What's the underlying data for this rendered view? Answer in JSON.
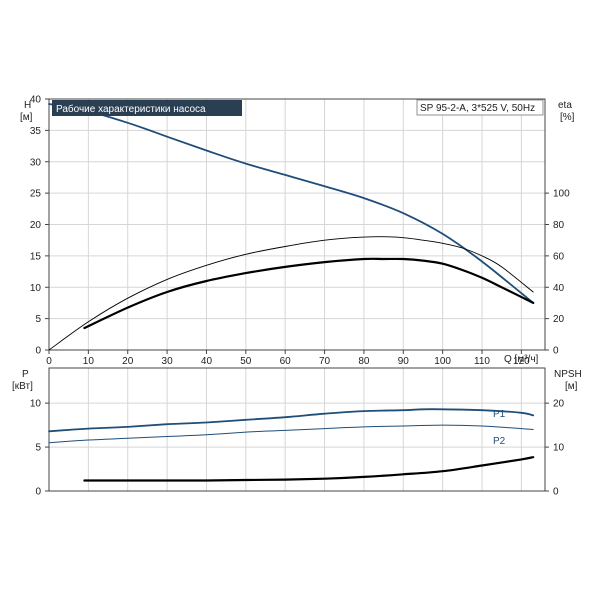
{
  "chart_data": [
    {
      "type": "line",
      "title": "Рабочие характеристики насоса",
      "subtitle": "SP 95-2-A, 3*525 V, 50Hz",
      "colors": {
        "title_bg": "#2a3f52",
        "title_fg": "#ffffff",
        "blue": "#1f4e79",
        "black": "#000000"
      },
      "x_axis": {
        "label": "Q [м³/ч]",
        "range": [
          0,
          126
        ],
        "ticks": [
          0,
          10,
          20,
          30,
          40,
          50,
          60,
          70,
          80,
          90,
          100,
          110,
          120
        ]
      },
      "y_left": {
        "label_top": "H",
        "label_unit": "[м]",
        "range": [
          0,
          40
        ],
        "ticks": [
          0,
          5,
          10,
          15,
          20,
          25,
          30,
          35,
          40
        ]
      },
      "y_right": {
        "label_top": "eta",
        "label_unit": "[%]",
        "range": [
          0,
          160
        ],
        "ticks": [
          0,
          20,
          40,
          60,
          80,
          100
        ]
      },
      "series": [
        {
          "axis": "left",
          "color": "#1f4e79",
          "width": 1.8,
          "x": [
            0,
            8,
            20,
            30,
            40,
            50,
            60,
            70,
            80,
            90,
            100,
            110,
            123
          ],
          "y": [
            39.2,
            38.4,
            36.2,
            34.0,
            31.8,
            29.7,
            27.9,
            26.1,
            24.2,
            21.8,
            18.5,
            14.1,
            7.5
          ]
        },
        {
          "axis": "right",
          "color": "#000000",
          "width": 0.9,
          "x": [
            0,
            10,
            20,
            30,
            40,
            50,
            60,
            70,
            80,
            88,
            95,
            100,
            105,
            110,
            115,
            123
          ],
          "y": [
            0,
            18,
            33,
            45,
            54,
            61,
            66,
            70,
            72,
            72,
            70,
            68,
            65,
            60,
            53,
            37
          ]
        },
        {
          "axis": "right",
          "color": "#000000",
          "width": 2.2,
          "x": [
            9,
            20,
            30,
            40,
            50,
            60,
            70,
            80,
            85,
            90,
            95,
            100,
            105,
            110,
            115,
            123
          ],
          "y": [
            14,
            27,
            37,
            44,
            49,
            53,
            56,
            58,
            58,
            58,
            57,
            55,
            51,
            46,
            40,
            30
          ]
        }
      ]
    },
    {
      "type": "line",
      "x_axis": {
        "range": [
          0,
          126
        ]
      },
      "y_left": {
        "label_top": "P",
        "label_unit": "[кВт]",
        "range": [
          0,
          14
        ],
        "ticks": [
          0,
          5,
          10
        ]
      },
      "y_right": {
        "label_top": "NPSH",
        "label_unit": "[м]",
        "range": [
          0,
          28
        ],
        "ticks": [
          0,
          10,
          20
        ]
      },
      "series": [
        {
          "name": "P1",
          "axis": "left",
          "color": "#1f4e79",
          "width": 1.8,
          "x": [
            0,
            10,
            20,
            30,
            40,
            50,
            60,
            70,
            80,
            90,
            95,
            100,
            110,
            120,
            123
          ],
          "y": [
            6.8,
            7.1,
            7.3,
            7.6,
            7.8,
            8.1,
            8.4,
            8.8,
            9.1,
            9.2,
            9.3,
            9.3,
            9.2,
            8.9,
            8.6
          ]
        },
        {
          "name": "P2",
          "axis": "left",
          "color": "#1f4e79",
          "width": 1.0,
          "x": [
            0,
            10,
            20,
            30,
            40,
            50,
            60,
            70,
            80,
            90,
            100,
            110,
            120,
            123
          ],
          "y": [
            5.5,
            5.8,
            6.0,
            6.2,
            6.4,
            6.7,
            6.9,
            7.1,
            7.3,
            7.4,
            7.5,
            7.4,
            7.1,
            7.0
          ]
        },
        {
          "axis": "right",
          "color": "#000000",
          "width": 2.2,
          "x": [
            9,
            20,
            30,
            40,
            50,
            60,
            70,
            80,
            90,
            100,
            110,
            120,
            123
          ],
          "y": [
            2.4,
            2.4,
            2.4,
            2.4,
            2.5,
            2.6,
            2.8,
            3.2,
            3.8,
            4.5,
            5.8,
            7.2,
            7.7
          ]
        }
      ]
    }
  ]
}
